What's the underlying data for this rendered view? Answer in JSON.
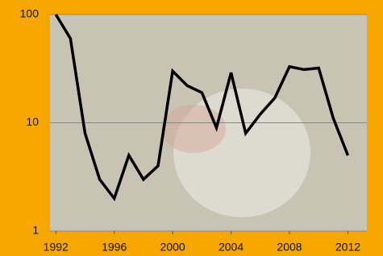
{
  "chart_data": {
    "type": "line",
    "x": [
      1992,
      1993,
      1994,
      1995,
      1996,
      1997,
      1998,
      1999,
      2000,
      2001,
      2002,
      2003,
      2004,
      2005,
      2006,
      2007,
      2008,
      2009,
      2010,
      2011,
      2012
    ],
    "series": [
      {
        "color": "#000000",
        "values": [
          100,
          60,
          8,
          3,
          2,
          5,
          3,
          4,
          30,
          22,
          19,
          9,
          29,
          8,
          12,
          17,
          33,
          31,
          32,
          11,
          5
        ]
      }
    ],
    "xlim": [
      1991.6,
      2013.3
    ],
    "xticks": [
      1992,
      1996,
      2000,
      2004,
      2008,
      2012
    ],
    "ylim": [
      1,
      100
    ],
    "yticks": [
      1,
      10,
      100
    ],
    "log_scale_y": true,
    "grid": true
  }
}
